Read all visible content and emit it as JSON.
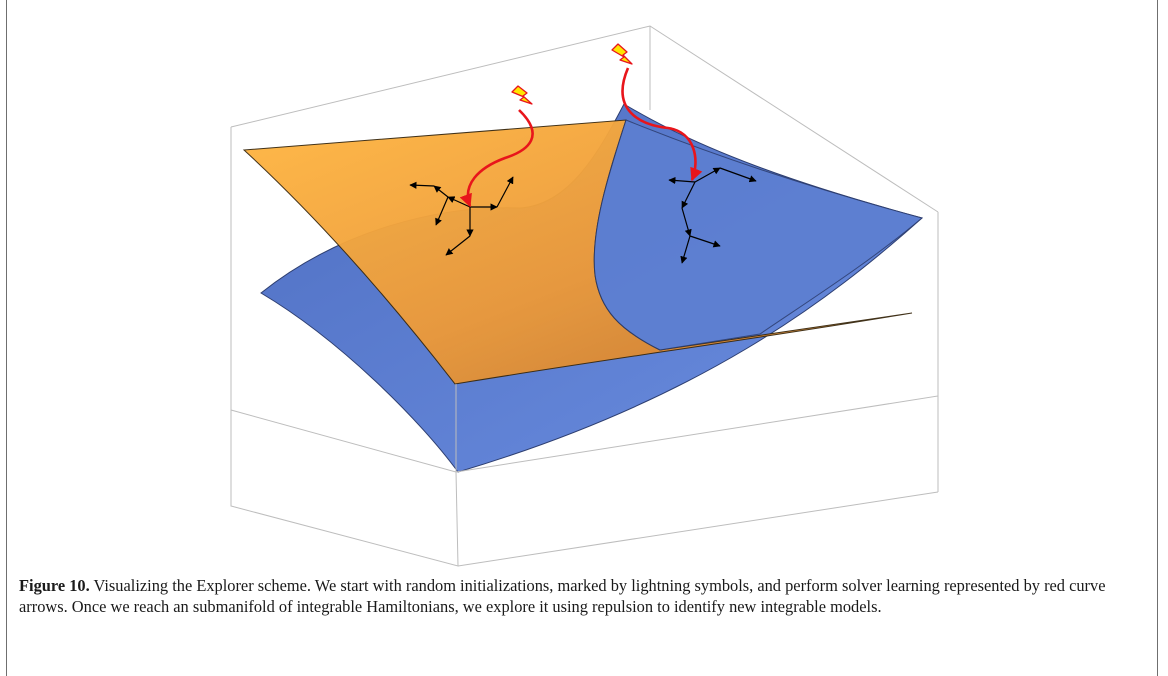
{
  "caption": {
    "label": "Figure 10.",
    "text": " Visualizing the Explorer scheme. We start with random initializations, marked by lightning symbols, and perform solver learning represented by red curve arrows. Once we reach an submanifold of integrable Hamiltonians, we explore it using repulsion to identify new integrable models."
  },
  "colors": {
    "orange_surface": "#f4a437",
    "blue_surface": "#5b7fd3",
    "red_arrow": "#e8151b",
    "lightning_fill": "#ffe600",
    "box_edge": "#bdbdbd"
  },
  "icons": [
    "lightning-icon",
    "curved-arrow-icon",
    "vector-arrow-icon"
  ]
}
